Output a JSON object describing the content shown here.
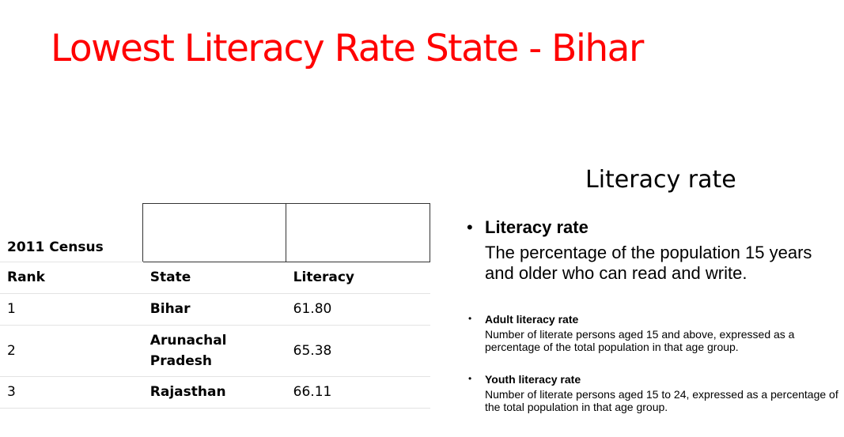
{
  "page": {
    "title": "Lowest Literacy Rate State - Bihar"
  },
  "census_table": {
    "caption": "2011 Census",
    "headers": [
      "Rank",
      "State",
      "Literacy"
    ],
    "rows": [
      {
        "rank": "1",
        "state": "Bihar",
        "literacy": "61.80"
      },
      {
        "rank": "2",
        "state": "Arunachal Pradesh",
        "literacy": "65.38"
      },
      {
        "rank": "3",
        "state": "Rajasthan",
        "literacy": "66.11"
      }
    ]
  },
  "definitions": {
    "title": "Literacy rate",
    "bullet": "•",
    "main": {
      "heading": "Literacy rate",
      "text": "The percentage of the population 15 years and older who can read and write."
    },
    "adult": {
      "heading": "Adult literacy rate",
      "text": "Number of literate persons aged 15 and above, expressed as a percentage of the total population in that age group."
    },
    "youth": {
      "heading": "Youth literacy rate",
      "text": "Number of literate persons aged 15 to 24, expressed as a percentage of the total population in that age group."
    }
  },
  "colors": {
    "title": "#ff0000",
    "text": "#000000",
    "rule": "#e3e3e3"
  }
}
